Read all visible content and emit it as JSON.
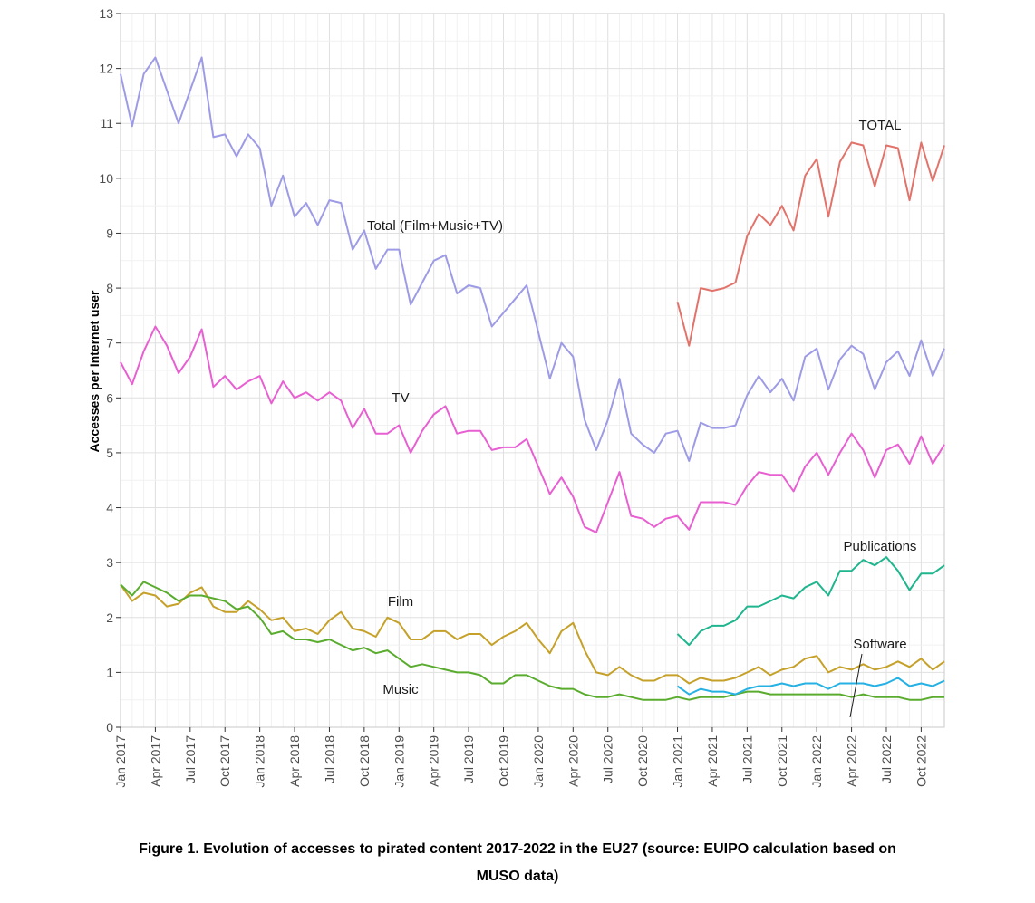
{
  "chart_data": {
    "type": "line",
    "ylabel": "Accesses per Internet user",
    "xlabel": "",
    "ylim": [
      0,
      13
    ],
    "yticks": [
      "0",
      "1",
      "2",
      "3",
      "4",
      "5",
      "6",
      "7",
      "8",
      "9",
      "10",
      "11",
      "12",
      "13"
    ],
    "x_start": "2017-01",
    "x_end": "2022-12",
    "xticks": [
      "Jan 2017",
      "Apr 2017",
      "Jul 2017",
      "Oct 2017",
      "Jan 2018",
      "Apr 2018",
      "Jul 2018",
      "Oct 2018",
      "Jan 2019",
      "Apr 2019",
      "Jul 2019",
      "Oct 2019",
      "Jan 2020",
      "Apr 2020",
      "Jul 2020",
      "Oct 2020",
      "Jan 2021",
      "Apr 2021",
      "Jul 2021",
      "Oct 2021",
      "Jan 2022",
      "Apr 2022",
      "Jul 2022",
      "Oct 2022"
    ],
    "grid": true,
    "legend": "none",
    "series": [
      {
        "name": "Total (Film+Music+TV)",
        "color": "#9d9be6",
        "start": "2017-01",
        "values": [
          11.9,
          10.95,
          11.9,
          12.2,
          11.6,
          11.0,
          11.6,
          12.2,
          10.75,
          10.8,
          10.4,
          10.8,
          10.55,
          9.5,
          10.05,
          9.3,
          9.55,
          9.15,
          9.6,
          9.55,
          8.7,
          9.05,
          8.35,
          8.7,
          8.7,
          7.7,
          8.1,
          8.5,
          8.6,
          7.9,
          8.05,
          8.0,
          7.3,
          7.55,
          7.8,
          8.05,
          7.2,
          6.35,
          7.0,
          6.75,
          5.6,
          5.05,
          5.6,
          6.35,
          5.35,
          5.15,
          5.0,
          5.35,
          5.4,
          4.85,
          5.55,
          5.45,
          5.45,
          5.5,
          6.05,
          6.4,
          6.1,
          6.35,
          5.95,
          6.75,
          6.9,
          6.15,
          6.7,
          6.95,
          6.8,
          6.15,
          6.65,
          6.85,
          6.4,
          7.05,
          6.4,
          6.9
        ]
      },
      {
        "name": "TV",
        "color": "#e85fd2",
        "start": "2017-01",
        "values": [
          6.65,
          6.25,
          6.85,
          7.3,
          6.95,
          6.45,
          6.75,
          7.25,
          6.2,
          6.4,
          6.15,
          6.3,
          6.4,
          5.9,
          6.3,
          6.0,
          6.1,
          5.95,
          6.1,
          5.95,
          5.45,
          5.8,
          5.35,
          5.35,
          5.5,
          5.0,
          5.4,
          5.7,
          5.85,
          5.35,
          5.4,
          5.4,
          5.05,
          5.1,
          5.1,
          5.25,
          4.75,
          4.25,
          4.55,
          4.2,
          3.65,
          3.55,
          4.1,
          4.65,
          3.85,
          3.8,
          3.65,
          3.8,
          3.85,
          3.6,
          4.1,
          4.1,
          4.1,
          4.05,
          4.4,
          4.65,
          4.6,
          4.6,
          4.3,
          4.75,
          5.0,
          4.6,
          5.0,
          5.35,
          5.05,
          4.55,
          5.05,
          5.15,
          4.8,
          5.3,
          4.8,
          5.15
        ]
      },
      {
        "name": "Film",
        "color": "#c6a12a",
        "start": "2017-01",
        "values": [
          2.6,
          2.3,
          2.45,
          2.4,
          2.2,
          2.25,
          2.45,
          2.55,
          2.2,
          2.1,
          2.1,
          2.3,
          2.15,
          1.95,
          2.0,
          1.75,
          1.8,
          1.7,
          1.95,
          2.1,
          1.8,
          1.75,
          1.65,
          2.0,
          1.9,
          1.6,
          1.6,
          1.75,
          1.75,
          1.6,
          1.7,
          1.7,
          1.5,
          1.65,
          1.75,
          1.9,
          1.6,
          1.35,
          1.75,
          1.9,
          1.4,
          1.0,
          0.95,
          1.1,
          0.95,
          0.85,
          0.85,
          0.95,
          0.95,
          0.8,
          0.9,
          0.85,
          0.85,
          0.9,
          1.0,
          1.1,
          0.95,
          1.05,
          1.1,
          1.25,
          1.3,
          1.0,
          1.1,
          1.05,
          1.15,
          1.05,
          1.1,
          1.2,
          1.1,
          1.25,
          1.05,
          1.2
        ]
      },
      {
        "name": "Music",
        "color": "#5aac2e",
        "start": "2017-01",
        "values": [
          2.6,
          2.4,
          2.65,
          2.55,
          2.45,
          2.3,
          2.4,
          2.4,
          2.35,
          2.3,
          2.15,
          2.2,
          2.0,
          1.7,
          1.75,
          1.6,
          1.6,
          1.55,
          1.6,
          1.5,
          1.4,
          1.45,
          1.35,
          1.4,
          1.25,
          1.1,
          1.15,
          1.1,
          1.05,
          1.0,
          1.0,
          0.95,
          0.8,
          0.8,
          0.95,
          0.95,
          0.85,
          0.75,
          0.7,
          0.7,
          0.6,
          0.55,
          0.55,
          0.6,
          0.55,
          0.5,
          0.5,
          0.5,
          0.55,
          0.5,
          0.55,
          0.55,
          0.55,
          0.6,
          0.65,
          0.65,
          0.6,
          0.6,
          0.6,
          0.6,
          0.6,
          0.6,
          0.6,
          0.55,
          0.6,
          0.55,
          0.55,
          0.55,
          0.5,
          0.5,
          0.55,
          0.55
        ]
      },
      {
        "name": "TOTAL",
        "color": "#e2736b",
        "start": "2021-01",
        "values": [
          7.75,
          6.95,
          8.0,
          7.95,
          8.0,
          8.1,
          8.95,
          9.35,
          9.15,
          9.5,
          9.05,
          10.05,
          10.35,
          9.3,
          10.3,
          10.65,
          10.6,
          9.85,
          10.6,
          10.55,
          9.6,
          10.65,
          9.95,
          10.6
        ]
      },
      {
        "name": "Publications",
        "color": "#1fb58e",
        "start": "2021-01",
        "values": [
          1.7,
          1.5,
          1.75,
          1.85,
          1.85,
          1.95,
          2.2,
          2.2,
          2.3,
          2.4,
          2.35,
          2.55,
          2.65,
          2.4,
          2.85,
          2.85,
          3.05,
          2.95,
          3.1,
          2.85,
          2.5,
          2.8,
          2.8,
          2.95
        ]
      },
      {
        "name": "Software",
        "color": "#25b1e3",
        "start": "2021-01",
        "values": [
          0.75,
          0.6,
          0.7,
          0.65,
          0.65,
          0.6,
          0.7,
          0.75,
          0.75,
          0.8,
          0.75,
          0.8,
          0.8,
          0.7,
          0.8,
          0.8,
          0.8,
          0.75,
          0.8,
          0.9,
          0.75,
          0.8,
          0.75,
          0.85
        ]
      }
    ]
  },
  "caption": {
    "line1": "Figure 1. Evolution of accesses to pirated content 2017-2022 in the EU27 (source: EUIPO calculation based on",
    "line2": "MUSO data)"
  }
}
